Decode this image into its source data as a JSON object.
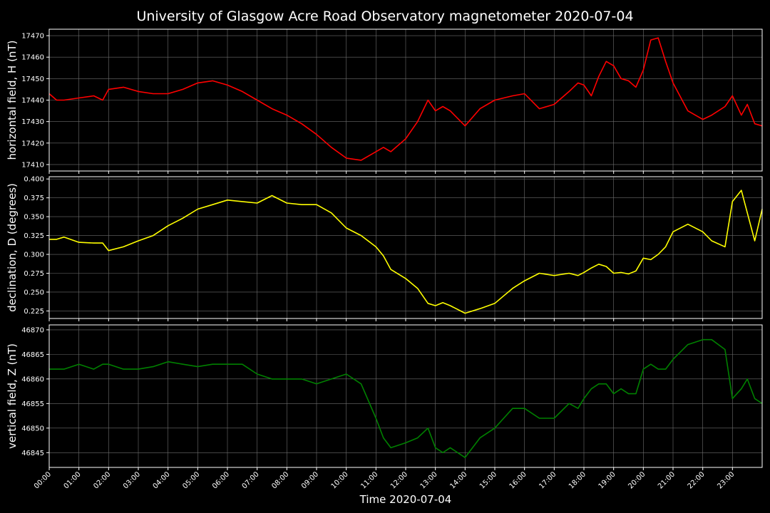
{
  "chart_data": {
    "type": "line",
    "title": "University of Glasgow Acre Road Observatory magnetometer 2020-07-04",
    "xlabel": "Time 2020-07-04",
    "x_range": [
      "00:00",
      "24:00"
    ],
    "x_tick_labels": [
      "00:00",
      "01:00",
      "02:00",
      "03:00",
      "04:00",
      "05:00",
      "06:00",
      "07:00",
      "08:00",
      "09:00",
      "10:00",
      "11:00",
      "12:00",
      "13:00",
      "14:00",
      "15:00",
      "16:00",
      "17:00",
      "18:00",
      "19:00",
      "20:00",
      "21:00",
      "22:00",
      "23:00"
    ],
    "x_hours": [
      0,
      0.25,
      0.5,
      1,
      1.5,
      1.8,
      2,
      2.5,
      3,
      3.5,
      4,
      4.5,
      5,
      5.5,
      6,
      6.5,
      7,
      7.5,
      8,
      8.5,
      9,
      9.5,
      10,
      10.5,
      11,
      11.25,
      11.5,
      12,
      12.4,
      12.75,
      13,
      13.25,
      13.5,
      14,
      14.5,
      15,
      15.3,
      15.6,
      16,
      16.5,
      17,
      17.5,
      17.8,
      18,
      18.25,
      18.5,
      18.75,
      19,
      19.25,
      19.5,
      19.75,
      20,
      20.25,
      20.5,
      20.75,
      21,
      21.5,
      22,
      22.3,
      22.75,
      23,
      23.3,
      23.5,
      23.75,
      24
    ],
    "grid": true,
    "panels": [
      {
        "ylabel": "horizontal field, H (nT)",
        "color": "#ff0000",
        "ylim": [
          17407,
          17473
        ],
        "yticks": [
          17410,
          17420,
          17430,
          17440,
          17450,
          17460,
          17470
        ],
        "values": [
          17443,
          17440,
          17440,
          17441,
          17442,
          17440,
          17445,
          17446,
          17444,
          17443,
          17443,
          17445,
          17448,
          17449,
          17447,
          17444,
          17440,
          17436,
          17433,
          17429,
          17424,
          17418,
          17413,
          17412,
          17416,
          17418,
          17416,
          17422,
          17430,
          17440,
          17435,
          17437,
          17435,
          17428,
          17436,
          17440,
          17441,
          17442,
          17443,
          17436,
          17438,
          17444,
          17448,
          17447,
          17442,
          17451,
          17458,
          17456,
          17450,
          17449,
          17446,
          17454,
          17468,
          17469,
          17458,
          17448,
          17435,
          17431,
          17433,
          17437,
          17442,
          17433,
          17438,
          17429,
          17428
        ]
      },
      {
        "ylabel": "declination, D (degrees)",
        "color": "#ffff00",
        "ylim": [
          0.215,
          0.403
        ],
        "yticks": [
          0.225,
          0.25,
          0.275,
          0.3,
          0.325,
          0.35,
          0.375,
          0.4
        ],
        "values": [
          0.32,
          0.32,
          0.323,
          0.316,
          0.315,
          0.315,
          0.305,
          0.31,
          0.318,
          0.325,
          0.338,
          0.348,
          0.36,
          0.366,
          0.372,
          0.37,
          0.368,
          0.378,
          0.368,
          0.366,
          0.366,
          0.355,
          0.335,
          0.325,
          0.31,
          0.298,
          0.28,
          0.268,
          0.255,
          0.235,
          0.232,
          0.236,
          0.232,
          0.222,
          0.228,
          0.235,
          0.245,
          0.255,
          0.265,
          0.275,
          0.272,
          0.275,
          0.272,
          0.276,
          0.282,
          0.287,
          0.284,
          0.275,
          0.276,
          0.274,
          0.278,
          0.295,
          0.293,
          0.3,
          0.31,
          0.33,
          0.34,
          0.33,
          0.318,
          0.31,
          0.37,
          0.385,
          0.355,
          0.318,
          0.36
        ]
      },
      {
        "ylabel": "vertical field, Z (nT)",
        "color": "#008000",
        "ylim": [
          46842,
          46871
        ],
        "yticks": [
          46845,
          46850,
          46855,
          46860,
          46865,
          46870
        ],
        "values": [
          46862,
          46862,
          46862,
          46863,
          46862,
          46863,
          46863,
          46862,
          46862,
          46862.5,
          46863.5,
          46863,
          46862.5,
          46863,
          46863,
          46863,
          46861,
          46860,
          46860,
          46860,
          46859,
          46860,
          46861,
          46859,
          46852,
          46848,
          46846,
          46847,
          46848,
          46850,
          46846,
          46845,
          46846,
          46844,
          46848,
          46850,
          46852,
          46854,
          46854,
          46852,
          46852,
          46855,
          46854,
          46856,
          46858,
          46859,
          46859,
          46857,
          46858,
          46857,
          46857,
          46862,
          46863,
          46862,
          46862,
          46864,
          46867,
          46868,
          46868,
          46866,
          46856,
          46858,
          46860,
          46856,
          46855
        ]
      }
    ]
  }
}
